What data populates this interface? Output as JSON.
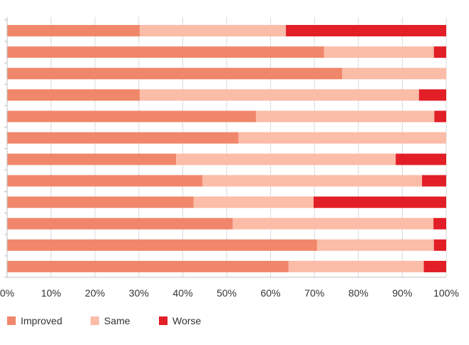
{
  "chart_data": {
    "type": "bar",
    "orientation": "horizontal",
    "stacked": true,
    "categories": [
      "",
      "",
      "",
      "",
      "",
      "",
      "",
      "",
      "",
      "",
      "",
      ""
    ],
    "series": [
      {
        "name": "Improved",
        "color": "#f0876b",
        "values": [
          30.2,
          72.2,
          76.3,
          30.2,
          56.7,
          52.7,
          38.5,
          44.5,
          42.5,
          51.4,
          70.6,
          64.1
        ]
      },
      {
        "name": "Same",
        "color": "#fbbca8",
        "values": [
          33.3,
          25.0,
          23.7,
          63.6,
          40.6,
          47.3,
          50.0,
          50.0,
          27.3,
          45.7,
          26.6,
          30.8
        ]
      },
      {
        "name": "Worse",
        "color": "#e21e26",
        "values": [
          36.5,
          2.8,
          0.0,
          6.2,
          2.7,
          0.0,
          11.5,
          5.5,
          30.2,
          2.9,
          2.8,
          5.1
        ]
      }
    ],
    "xlim": [
      0,
      100
    ],
    "xticks": [
      "0%",
      "10%",
      "20%",
      "30%",
      "40%",
      "50%",
      "60%",
      "70%",
      "80%",
      "90%",
      "100%"
    ],
    "grid": true,
    "legend_position": "bottom-left"
  }
}
